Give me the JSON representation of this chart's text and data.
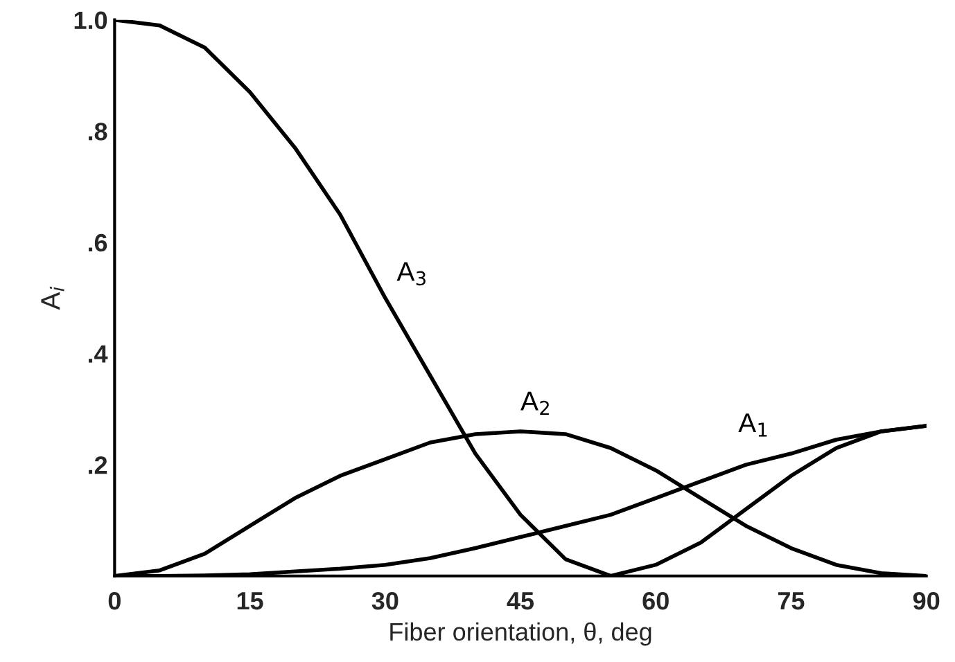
{
  "chart_data": {
    "type": "line",
    "xlabel": "Fiber orientation, θ, deg",
    "ylabel": "A$_{i}$",
    "x": [
      0,
      5,
      10,
      15,
      20,
      25,
      30,
      35,
      40,
      45,
      50,
      55,
      60,
      65,
      70,
      75,
      80,
      85,
      90
    ],
    "series": [
      {
        "name": "A$_{3}$",
        "color": "#000000",
        "values": [
          1.0,
          0.99,
          0.95,
          0.87,
          0.77,
          0.65,
          0.5,
          0.36,
          0.22,
          0.11,
          0.03,
          0.0,
          0.02,
          0.06,
          0.12,
          0.18,
          0.23,
          0.26,
          0.27
        ]
      },
      {
        "name": "A$_{2}$",
        "color": "#000000",
        "values": [
          0.0,
          0.01,
          0.04,
          0.09,
          0.14,
          0.18,
          0.21,
          0.24,
          0.255,
          0.26,
          0.255,
          0.23,
          0.19,
          0.14,
          0.09,
          0.05,
          0.02,
          0.005,
          0.0
        ]
      },
      {
        "name": "A$_{1}$",
        "color": "#000000",
        "values": [
          0.0,
          0.0,
          0.001,
          0.003,
          0.008,
          0.013,
          0.02,
          0.032,
          0.05,
          0.07,
          0.09,
          0.11,
          0.14,
          0.17,
          0.2,
          0.22,
          0.245,
          0.26,
          0.27
        ]
      }
    ],
    "xlim": [
      0,
      90
    ],
    "xticks": [
      0,
      15,
      30,
      45,
      60,
      75,
      90
    ],
    "ylim": [
      0,
      1.0
    ],
    "yticks": [
      {
        "value": 0.2,
        "label": ".2"
      },
      {
        "value": 0.4,
        "label": ".4"
      },
      {
        "value": 0.6,
        "label": ".6"
      },
      {
        "value": 0.8,
        "label": ".8"
      },
      {
        "value": 1.0,
        "label": "1.0"
      }
    ],
    "marker": "none",
    "line_style": "solid",
    "grid": false,
    "legend": false
  }
}
